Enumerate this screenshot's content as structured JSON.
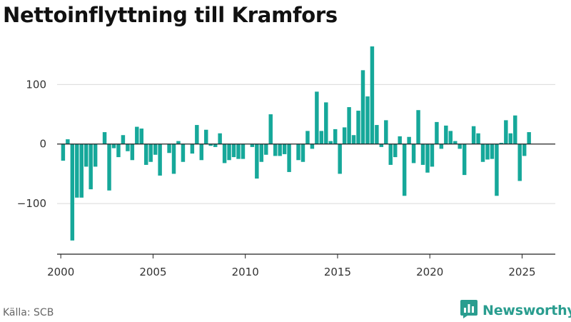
{
  "colors": {
    "bar": "#16a89a",
    "brand": "#2a9d8f",
    "grid": "#d9d9d9",
    "axis": "#222222"
  },
  "source": "Källa: SCB",
  "brand": {
    "name": "Newsworthy",
    "icon": "bar-chart-badge-icon"
  },
  "chart_data": {
    "type": "bar",
    "title": "Nettoinflyttning till Kramfors",
    "xlabel": "",
    "ylabel": "",
    "grid": true,
    "legend": "none",
    "ylim": [
      -185,
      170
    ],
    "yticks": [
      -100,
      0,
      100
    ],
    "ytick_labels": [
      "−100",
      "0",
      "100"
    ],
    "xlim": [
      1999.8,
      2026.8
    ],
    "xticks": [
      2000,
      2005,
      2010,
      2015,
      2020,
      2025
    ],
    "xtick_labels": [
      "2000",
      "2005",
      "2010",
      "2015",
      "2020",
      "2025"
    ],
    "categories": [
      "2000 Q1",
      "2000 Q2",
      "2000 Q3",
      "2000 Q4",
      "2001 Q1",
      "2001 Q2",
      "2001 Q3",
      "2001 Q4",
      "2002 Q1",
      "2002 Q2",
      "2002 Q3",
      "2002 Q4",
      "2003 Q1",
      "2003 Q2",
      "2003 Q3",
      "2003 Q4",
      "2004 Q1",
      "2004 Q2",
      "2004 Q3",
      "2004 Q4",
      "2005 Q1",
      "2005 Q2",
      "2005 Q3",
      "2005 Q4",
      "2006 Q1",
      "2006 Q2",
      "2006 Q3",
      "2006 Q4",
      "2007 Q1",
      "2007 Q2",
      "2007 Q3",
      "2007 Q4",
      "2008 Q1",
      "2008 Q2",
      "2008 Q3",
      "2008 Q4",
      "2009 Q1",
      "2009 Q2",
      "2009 Q3",
      "2009 Q4",
      "2010 Q1",
      "2010 Q2",
      "2010 Q3",
      "2010 Q4",
      "2011 Q1",
      "2011 Q2",
      "2011 Q3",
      "2011 Q4",
      "2012 Q1",
      "2012 Q2",
      "2012 Q3",
      "2012 Q4",
      "2013 Q1",
      "2013 Q2",
      "2013 Q3",
      "2013 Q4",
      "2014 Q1",
      "2014 Q2",
      "2014 Q3",
      "2014 Q4",
      "2015 Q1",
      "2015 Q2",
      "2015 Q3",
      "2015 Q4",
      "2016 Q1",
      "2016 Q2",
      "2016 Q3",
      "2016 Q4",
      "2017 Q1",
      "2017 Q2",
      "2017 Q3",
      "2017 Q4",
      "2018 Q1",
      "2018 Q2",
      "2018 Q3",
      "2018 Q4",
      "2019 Q1",
      "2019 Q2",
      "2019 Q3",
      "2019 Q4",
      "2020 Q1",
      "2020 Q2",
      "2020 Q3",
      "2020 Q4",
      "2021 Q1",
      "2021 Q2",
      "2021 Q3",
      "2021 Q4",
      "2022 Q1",
      "2022 Q2",
      "2022 Q3",
      "2022 Q4",
      "2023 Q1",
      "2023 Q2",
      "2023 Q3",
      "2023 Q4",
      "2024 Q1",
      "2024 Q2",
      "2024 Q3",
      "2024 Q4",
      "2025 Q1",
      "2025 Q2"
    ],
    "x": [
      2000.125,
      2000.375,
      2000.625,
      2000.875,
      2001.125,
      2001.375,
      2001.625,
      2001.875,
      2002.125,
      2002.375,
      2002.625,
      2002.875,
      2003.125,
      2003.375,
      2003.625,
      2003.875,
      2004.125,
      2004.375,
      2004.625,
      2004.875,
      2005.125,
      2005.375,
      2005.625,
      2005.875,
      2006.125,
      2006.375,
      2006.625,
      2006.875,
      2007.125,
      2007.375,
      2007.625,
      2007.875,
      2008.125,
      2008.375,
      2008.625,
      2008.875,
      2009.125,
      2009.375,
      2009.625,
      2009.875,
      2010.125,
      2010.375,
      2010.625,
      2010.875,
      2011.125,
      2011.375,
      2011.625,
      2011.875,
      2012.125,
      2012.375,
      2012.625,
      2012.875,
      2013.125,
      2013.375,
      2013.625,
      2013.875,
      2014.125,
      2014.375,
      2014.625,
      2014.875,
      2015.125,
      2015.375,
      2015.625,
      2015.875,
      2016.125,
      2016.375,
      2016.625,
      2016.875,
      2017.125,
      2017.375,
      2017.625,
      2017.875,
      2018.125,
      2018.375,
      2018.625,
      2018.875,
      2019.125,
      2019.375,
      2019.625,
      2019.875,
      2020.125,
      2020.375,
      2020.625,
      2020.875,
      2021.125,
      2021.375,
      2021.625,
      2021.875,
      2022.125,
      2022.375,
      2022.625,
      2022.875,
      2023.125,
      2023.375,
      2023.625,
      2023.875,
      2024.125,
      2024.375,
      2024.625,
      2024.875,
      2025.125,
      2025.375
    ],
    "values": [
      -28,
      8,
      -162,
      -90,
      -90,
      -38,
      -76,
      -38,
      0,
      20,
      -78,
      -7,
      -22,
      15,
      -12,
      -27,
      29,
      26,
      -35,
      -30,
      -18,
      -53,
      0,
      -15,
      -50,
      5,
      -30,
      0,
      -16,
      32,
      -27,
      24,
      -3,
      -5,
      18,
      -32,
      -27,
      -22,
      -25,
      -25,
      0,
      -5,
      -58,
      -30,
      -18,
      50,
      -20,
      -20,
      -17,
      -47,
      0,
      -27,
      -30,
      22,
      -8,
      88,
      22,
      70,
      5,
      25,
      -50,
      28,
      62,
      15,
      56,
      124,
      80,
      164,
      32,
      -5,
      40,
      -35,
      -22,
      13,
      -87,
      12,
      -32,
      57,
      -35,
      -48,
      -38,
      37,
      -8,
      31,
      22,
      5,
      -8,
      -52,
      0,
      30,
      18,
      -30,
      -26,
      -25,
      -87,
      2,
      40,
      18,
      48,
      -62,
      -20,
      20
    ]
  }
}
